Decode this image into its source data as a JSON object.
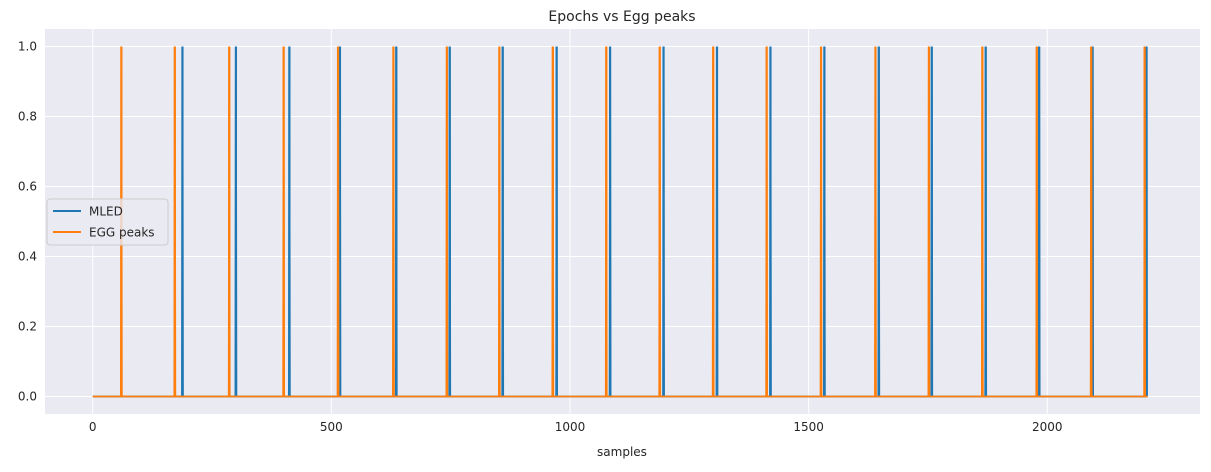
{
  "chart_data": {
    "type": "line",
    "title": "Epochs vs Egg peaks",
    "xlabel": "samples",
    "ylabel": "",
    "xlim": [
      -100,
      2320
    ],
    "ylim": [
      -0.05,
      1.05
    ],
    "x_end": 2210,
    "xticks": [
      0,
      500,
      1000,
      1500,
      2000
    ],
    "xtick_labels": [
      "0",
      "500",
      "1000",
      "1500",
      "2000"
    ],
    "yticks": [
      0.0,
      0.2,
      0.4,
      0.6,
      0.8,
      1.0
    ],
    "ytick_labels": [
      "0.0",
      "0.2",
      "0.4",
      "0.6",
      "0.8",
      "1.0"
    ],
    "grid": true,
    "legend_position": "center-left",
    "series": [
      {
        "name": "MLED",
        "color": "#1f77b4",
        "kind": "impulses",
        "baseline": 0,
        "spike_value": 1,
        "x": [
          188,
          300,
          412,
          518,
          636,
          748,
          859,
          972,
          1084,
          1196,
          1308,
          1420,
          1533,
          1647,
          1758,
          1871,
          1983,
          2095,
          2208
        ]
      },
      {
        "name": "EGG peaks",
        "color": "#ff7f0e",
        "kind": "impulses",
        "baseline": 0,
        "spike_value": 1,
        "x": [
          60,
          172,
          286,
          400,
          514,
          630,
          742,
          852,
          964,
          1076,
          1188,
          1300,
          1412,
          1526,
          1640,
          1752,
          1864,
          1978,
          2092,
          2204
        ]
      }
    ]
  }
}
